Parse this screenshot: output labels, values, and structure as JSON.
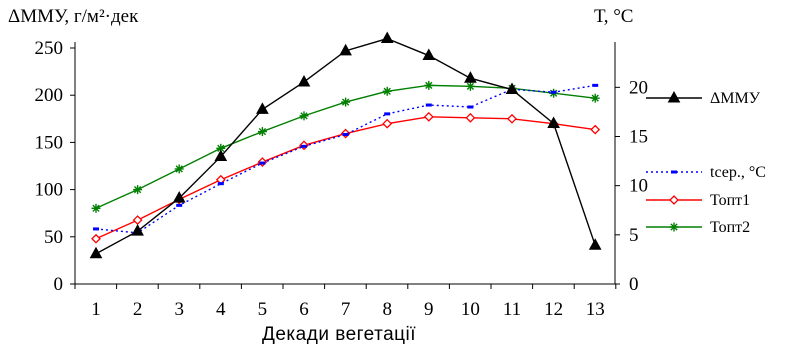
{
  "chart_data": {
    "type": "line",
    "ylabel_left": "ΔММУ, г/м²·дек",
    "ylabel_right": "Т, °С",
    "xlabel": "Декади вегетації",
    "categories": [
      "1",
      "2",
      "3",
      "4",
      "5",
      "6",
      "7",
      "8",
      "9",
      "10",
      "11",
      "12",
      "13"
    ],
    "ylim_left": [
      0,
      250
    ],
    "yticks_left": [
      "0",
      "50",
      "100",
      "150",
      "200",
      "250"
    ],
    "ylim_right": [
      0,
      24
    ],
    "yticks_right": [
      "0",
      "5",
      "10",
      "15",
      "20"
    ],
    "legend_position": "right",
    "series": [
      {
        "name": "ΔММУ",
        "axis": "left",
        "color": "#000000",
        "marker": "filled-triangle",
        "line_style": "solid",
        "values": [
          32,
          56,
          91,
          135,
          185,
          214,
          247,
          260,
          242,
          218,
          206,
          170,
          41
        ]
      },
      {
        "name": "tсер., °С",
        "axis": "right",
        "color": "#0000ff",
        "marker": "dash",
        "line_style": "dotted",
        "values": [
          5.6,
          5.2,
          8.0,
          10.2,
          12.3,
          14.0,
          15.2,
          17.3,
          18.2,
          18.0,
          19.8,
          19.5,
          20.2
        ]
      },
      {
        "name": "Топт1",
        "axis": "right",
        "color": "#ff0000",
        "marker": "open-diamond",
        "line_style": "solid",
        "values": [
          4.6,
          6.5,
          8.6,
          10.6,
          12.4,
          14.1,
          15.3,
          16.3,
          17.0,
          16.9,
          16.8,
          16.3,
          15.7
        ]
      },
      {
        "name": "Топт2",
        "axis": "right",
        "color": "#008000",
        "marker": "asterisk",
        "line_style": "solid",
        "values": [
          7.7,
          9.6,
          11.7,
          13.8,
          15.5,
          17.1,
          18.5,
          19.6,
          20.2,
          20.1,
          19.9,
          19.4,
          18.9
        ]
      }
    ]
  }
}
